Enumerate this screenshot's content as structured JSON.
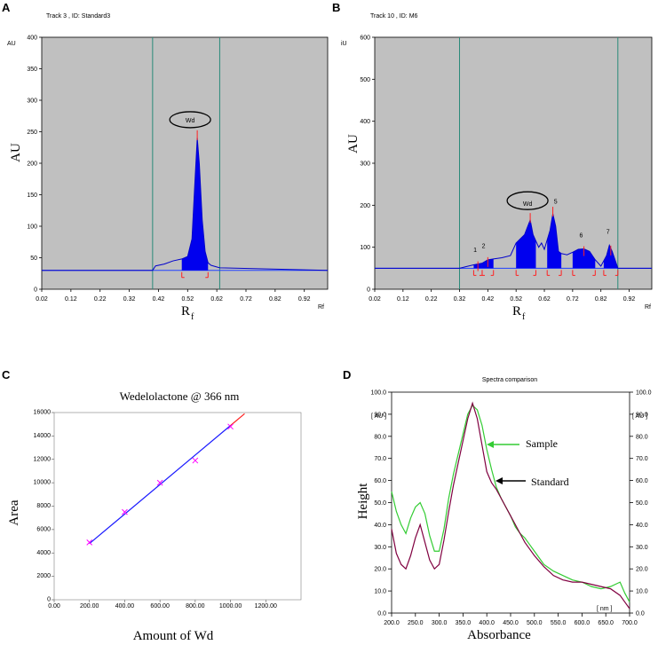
{
  "panels": {
    "a": {
      "label": "A",
      "title": "Track  3 , ID: Standard3"
    },
    "b": {
      "label": "B",
      "title": "Track  10 , ID: M6"
    },
    "c": {
      "label": "C"
    },
    "d": {
      "label": "D"
    }
  },
  "chart_data": [
    {
      "id": "A",
      "type": "line",
      "title": "Track  3 , ID: Standard3",
      "unit_label": "AU",
      "ylabel": "AU",
      "xlabel": "R",
      "xlabel_sub": "f",
      "x_end_label": "Rf",
      "xlim": [
        0.02,
        1.0
      ],
      "ylim": [
        0,
        400
      ],
      "xticks": [
        "0.02",
        "0.12",
        "0.22",
        "0.32",
        "0.42",
        "0.52",
        "0.62",
        "0.72",
        "0.82",
        "0.92"
      ],
      "yticks": [
        "0",
        "50",
        "100",
        "150",
        "200",
        "250",
        "300",
        "350",
        "400"
      ],
      "baseline": 30,
      "vlines": [
        0.4,
        0.63
      ],
      "series": [
        {
          "name": "trace",
          "x": [
            0.02,
            0.4,
            0.41,
            0.44,
            0.47,
            0.5,
            0.52,
            0.535,
            0.545,
            0.553,
            0.56,
            0.57,
            0.58,
            0.59,
            0.6,
            0.63,
            1.0
          ],
          "y": [
            30,
            30,
            37,
            40,
            45,
            48,
            52,
            80,
            170,
            240,
            200,
            110,
            60,
            42,
            38,
            34,
            30
          ]
        }
      ],
      "peaks": [
        {
          "label": "Wd",
          "x_start": 0.5,
          "x_end": 0.59,
          "x_max": 0.553,
          "y_max": 248
        }
      ]
    },
    {
      "id": "B",
      "type": "line",
      "title": "Track  10 , ID: M6",
      "unit_label": "iU",
      "ylabel": "AU",
      "xlabel": "R",
      "xlabel_sub": "f",
      "x_end_label": "Rf",
      "xlim": [
        0.02,
        1.0
      ],
      "ylim": [
        0,
        600
      ],
      "xticks": [
        "0.02",
        "0.12",
        "0.22",
        "0.32",
        "0.42",
        "0.52",
        "0.62",
        "0.72",
        "0.82",
        "0.92"
      ],
      "yticks": [
        "0",
        "100",
        "200",
        "300",
        "400",
        "500",
        "600"
      ],
      "baseline": 50,
      "vlines": [
        0.32,
        0.88
      ],
      "series": [
        {
          "name": "trace",
          "x": [
            0.02,
            0.32,
            0.35,
            0.37,
            0.4,
            0.42,
            0.44,
            0.47,
            0.5,
            0.52,
            0.55,
            0.57,
            0.58,
            0.6,
            0.61,
            0.62,
            0.64,
            0.65,
            0.66,
            0.67,
            0.68,
            0.7,
            0.72,
            0.74,
            0.76,
            0.78,
            0.8,
            0.82,
            0.84,
            0.85,
            0.86,
            0.88,
            1.0
          ],
          "y": [
            50,
            50,
            55,
            58,
            62,
            70,
            72,
            75,
            80,
            110,
            130,
            165,
            130,
            100,
            110,
            95,
            140,
            180,
            150,
            90,
            85,
            82,
            88,
            95,
            96,
            90,
            70,
            55,
            80,
            105,
            90,
            50,
            50
          ]
        }
      ],
      "peaks": [
        {
          "label": "1",
          "x_start": 0.37,
          "x_end": 0.4
        },
        {
          "label": "2",
          "x_start": 0.4,
          "x_end": 0.44
        },
        {
          "label": "Wd",
          "x_start": 0.52,
          "x_end": 0.59,
          "x_max": 0.57,
          "y_max": 175
        },
        {
          "label": "5",
          "x_start": 0.63,
          "x_end": 0.68,
          "x_max": 0.65,
          "y_max": 190
        },
        {
          "label": "6",
          "x_start": 0.72,
          "x_end": 0.8
        },
        {
          "label": "7",
          "x_start": 0.83,
          "x_end": 0.88
        }
      ]
    },
    {
      "id": "C",
      "type": "scatter",
      "title": "Wedelolactone @ 366 nm",
      "xlabel": "Amount of Wd",
      "ylabel": "Area",
      "xlim": [
        0,
        1400
      ],
      "ylim": [
        0,
        16000
      ],
      "xticks": [
        "0.00",
        "200.00",
        "400.00",
        "600.00",
        "800.00",
        "1000.00",
        "1200.00"
      ],
      "yticks": [
        "0",
        "2000",
        "4000",
        "6000",
        "8000",
        "10000",
        "12000",
        "14000",
        "16000"
      ],
      "points": {
        "x": [
          200,
          400,
          600,
          800,
          1000
        ],
        "y": [
          4900,
          7500,
          10000,
          11900,
          14800
        ]
      },
      "fit_line": {
        "x": [
          200,
          1080
        ],
        "y": [
          4800,
          15900
        ],
        "color": "#1a1aff",
        "extension_color": "#ff2020"
      }
    },
    {
      "id": "D",
      "type": "line",
      "title": "Spectra comparison",
      "xlabel": "Absorbance",
      "ylabel": "Height",
      "left_unit": "[ AU ]",
      "right_unit": "[ AU ]",
      "x_unit": "[ nm ]",
      "xlim": [
        200,
        700
      ],
      "ylim": [
        0,
        100
      ],
      "xticks": [
        "200.0",
        "250.0",
        "300.0",
        "350.0",
        "400.0",
        "450.0",
        "500.0",
        "550.0",
        "600.0",
        "650.0",
        "700.0"
      ],
      "yticks": [
        "0.0",
        "10.0",
        "20.0",
        "30.0",
        "40.0",
        "50.0",
        "60.0",
        "70.0",
        "80.0",
        "90.0",
        "100.0"
      ],
      "series": [
        {
          "name": "Sample",
          "color": "#33cc33",
          "x": [
            200,
            210,
            220,
            230,
            240,
            250,
            260,
            270,
            280,
            290,
            300,
            310,
            320,
            330,
            340,
            350,
            360,
            370,
            380,
            390,
            400,
            410,
            420,
            430,
            440,
            450,
            460,
            470,
            480,
            490,
            500,
            520,
            540,
            560,
            580,
            600,
            620,
            640,
            660,
            680,
            690,
            700
          ],
          "y": [
            55,
            46,
            40,
            36,
            43,
            48,
            50,
            45,
            35,
            28,
            28,
            38,
            52,
            63,
            72,
            81,
            90,
            94,
            92,
            85,
            74,
            65,
            57,
            52,
            48,
            44,
            39,
            36,
            34,
            31,
            28,
            22,
            19,
            17,
            15,
            14,
            12,
            11,
            12,
            14,
            9,
            5
          ]
        },
        {
          "name": "Standard",
          "color": "#800040",
          "x": [
            200,
            210,
            220,
            230,
            240,
            250,
            260,
            270,
            280,
            290,
            300,
            310,
            320,
            330,
            340,
            350,
            360,
            370,
            380,
            390,
            400,
            410,
            420,
            430,
            440,
            450,
            460,
            470,
            480,
            490,
            500,
            520,
            540,
            560,
            580,
            600,
            620,
            640,
            660,
            680,
            690,
            700
          ],
          "y": [
            38,
            27,
            22,
            20,
            26,
            34,
            40,
            32,
            24,
            20,
            22,
            33,
            46,
            58,
            68,
            78,
            88,
            95,
            88,
            76,
            64,
            59,
            56,
            52,
            48,
            44,
            40,
            36,
            32,
            29,
            26,
            21,
            17,
            15,
            14,
            14,
            13,
            12,
            11,
            8,
            5,
            2
          ]
        }
      ],
      "annotations": [
        {
          "text": "Sample",
          "arrow_color": "#33cc33"
        },
        {
          "text": "Standard",
          "arrow_color": "#000000"
        }
      ]
    }
  ]
}
